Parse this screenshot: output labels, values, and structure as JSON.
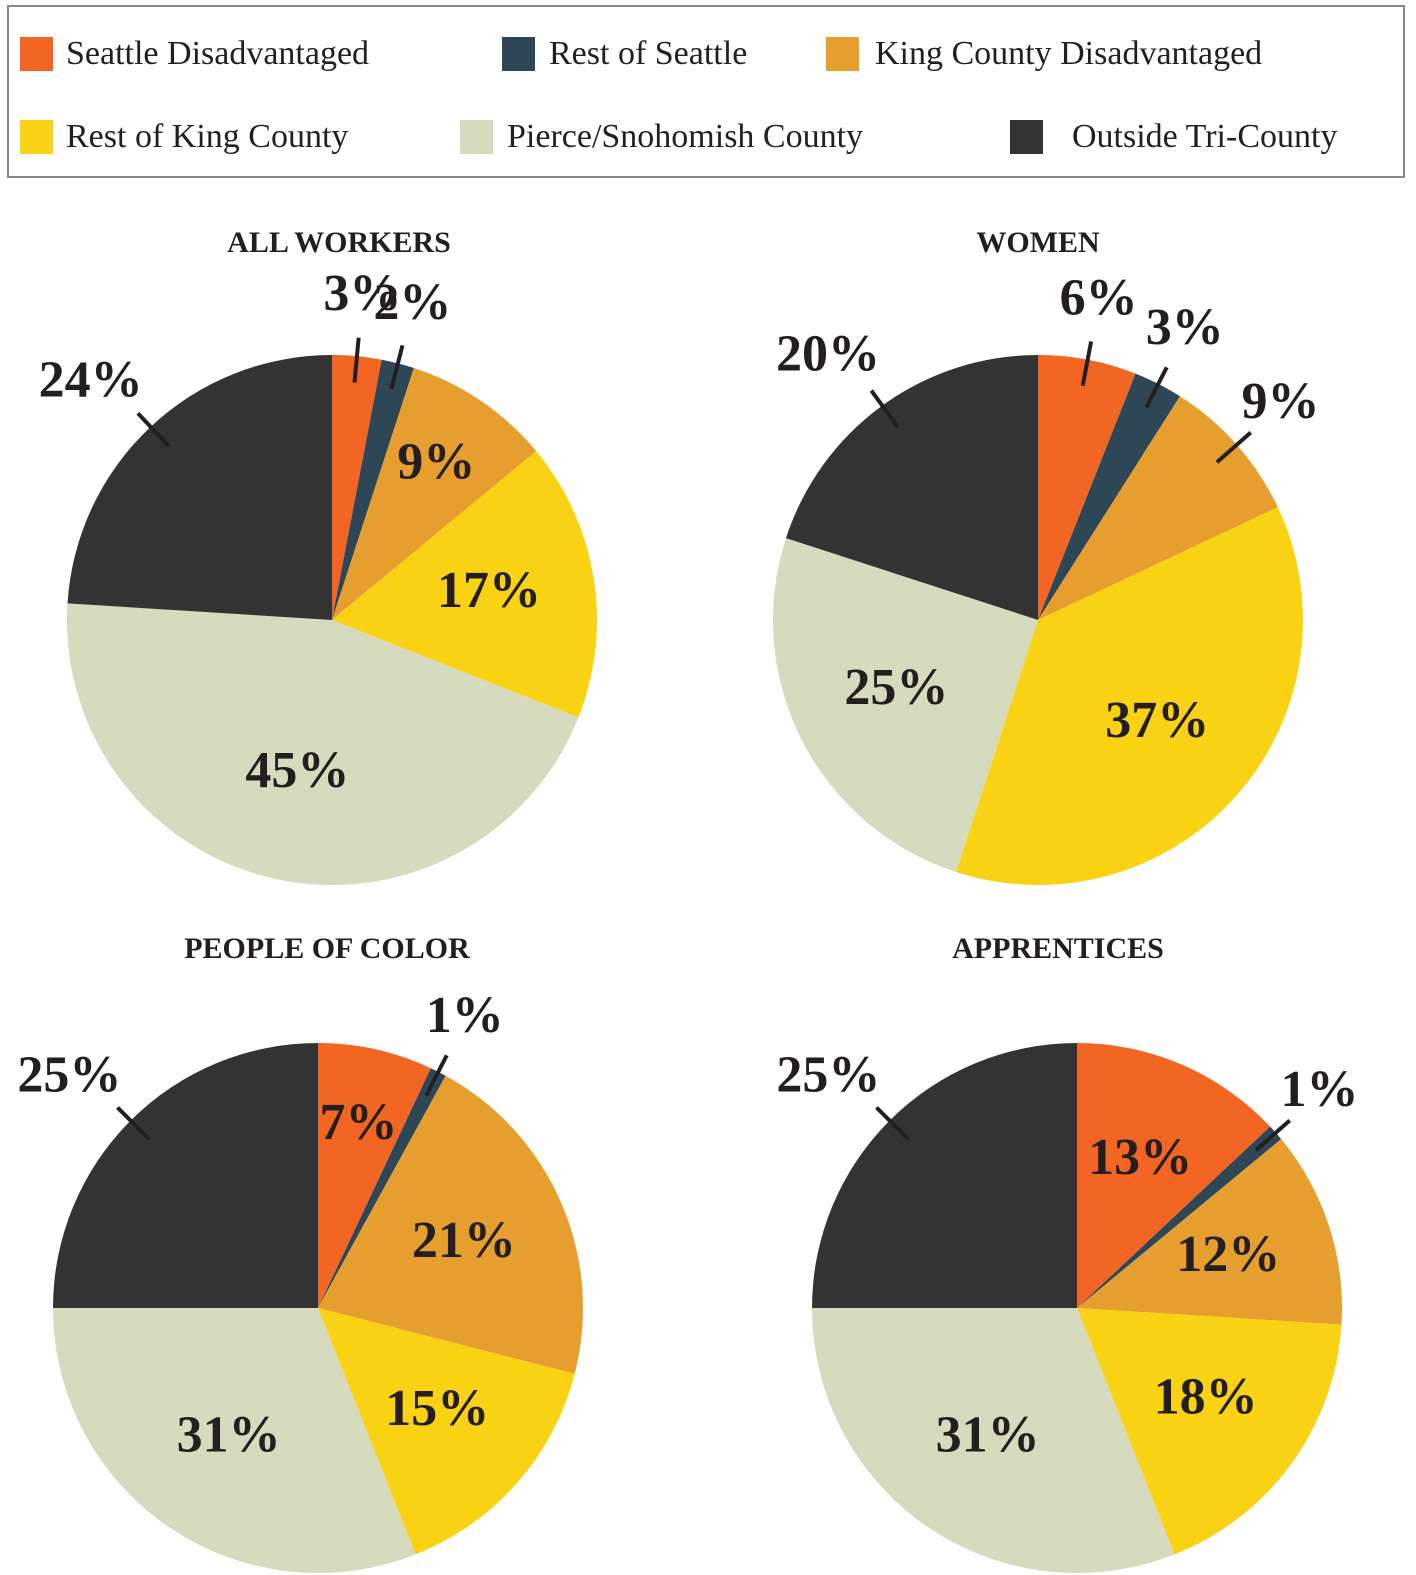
{
  "legend": {
    "categories": [
      "Seattle Disadvantaged",
      "Rest of Seattle",
      "King County Disadvantaged",
      "Rest of King County",
      "Pierce/Snohomish County",
      "Outside Tri-County"
    ],
    "colors": [
      "#f26522",
      "#2e4756",
      "#e69f2e",
      "#fad214",
      "#d7dbbd",
      "#333333"
    ]
  },
  "chart_data": [
    {
      "type": "pie",
      "title": "ALL WORKERS",
      "values": [
        3,
        2,
        9,
        17,
        45,
        24
      ],
      "value_labels": [
        "3%",
        "2%",
        "9%",
        "17%",
        "45%",
        "24%"
      ]
    },
    {
      "type": "pie",
      "title": "WOMEN",
      "values": [
        6,
        3,
        9,
        37,
        25,
        20
      ],
      "value_labels": [
        "6%",
        "3%",
        "9%",
        "37%",
        "25%",
        "20%"
      ]
    },
    {
      "type": "pie",
      "title": "PEOPLE OF COLOR",
      "values": [
        7,
        1,
        21,
        15,
        31,
        25
      ],
      "value_labels": [
        "7%",
        "1%",
        "21%",
        "15%",
        "31%",
        "25%"
      ]
    },
    {
      "type": "pie",
      "title": "APPRENTICES",
      "values": [
        13,
        1,
        12,
        18,
        31,
        25
      ],
      "value_labels": [
        "13%",
        "1%",
        "12%",
        "18%",
        "31%",
        "25%"
      ]
    }
  ]
}
